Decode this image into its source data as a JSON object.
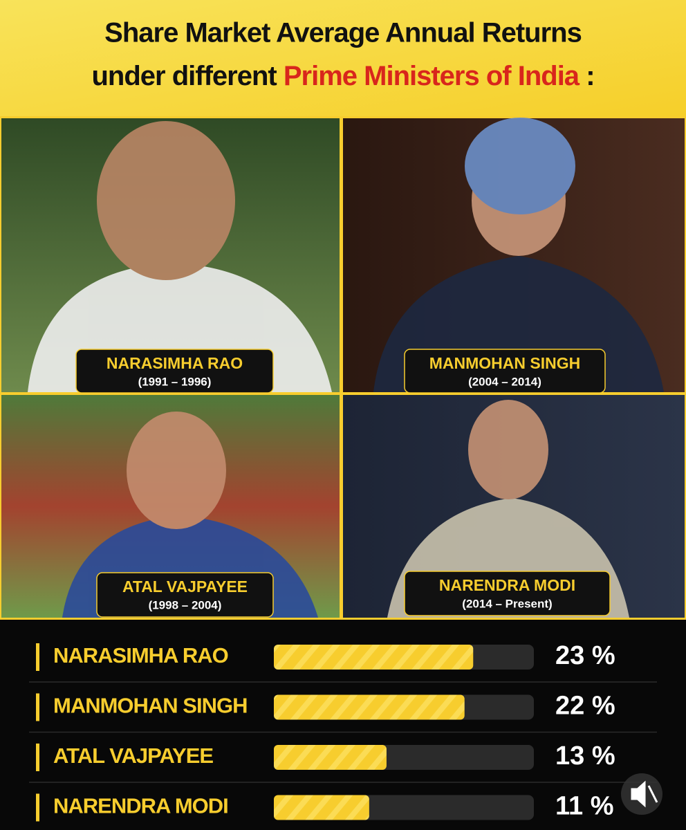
{
  "header": {
    "title_line1": "Share Market Average Annual Returns",
    "title_line2": "under different",
    "title_highlight": "Prime Ministers of India",
    "title_end": ":"
  },
  "panels": [
    {
      "name": "NARASIMHA RAO",
      "years": "(1991 – 1996)"
    },
    {
      "name": "MANMOHAN SINGH",
      "years": "(2004 – 2014)"
    },
    {
      "name": "ATAL VAJPAYEE",
      "years": "(1998 – 2004)"
    },
    {
      "name": "NARENDRA MODI",
      "years": "(2014 – Present)"
    }
  ],
  "chart_data": {
    "type": "bar",
    "orientation": "horizontal",
    "categories": [
      "NARASIMHA RAO",
      "MANMOHAN SINGH",
      "ATAL VAJPAYEE",
      "NARENDRA MODI"
    ],
    "values": [
      23,
      22,
      13,
      11
    ],
    "value_labels": [
      "23 %",
      "22 %",
      "13 %",
      "11 %"
    ],
    "color": "#f7cd2e",
    "xlim": [
      0,
      30
    ]
  }
}
